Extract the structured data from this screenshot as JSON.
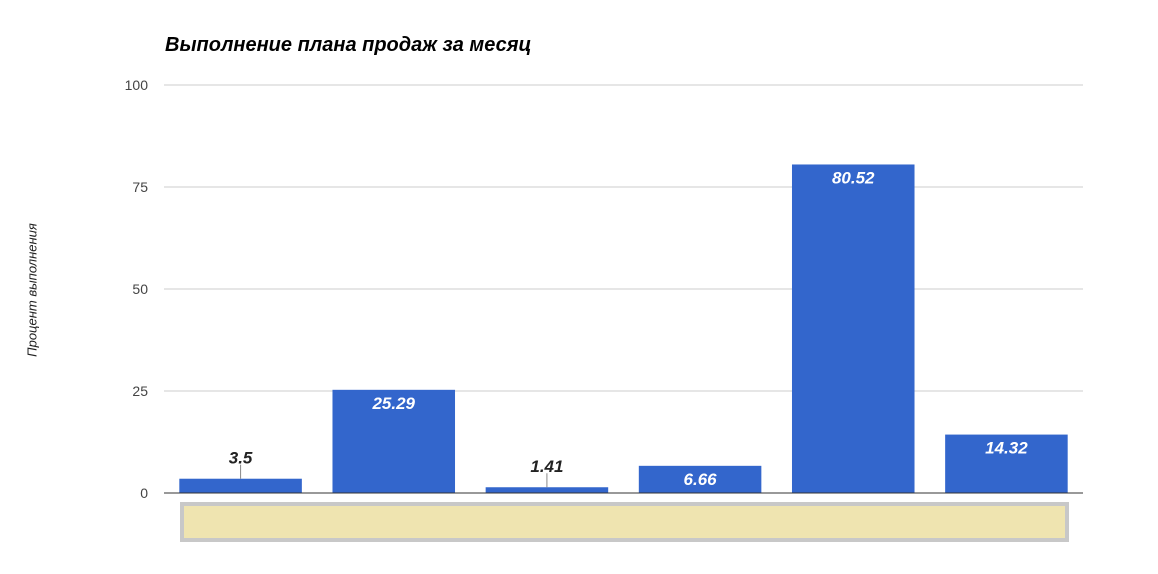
{
  "chart_data": {
    "type": "bar",
    "title": "Выполнение плана продаж за месяц",
    "ylabel": "Процент выполнения",
    "xlabel": "",
    "categories": [
      "",
      "",
      "",
      "",
      "",
      ""
    ],
    "values": [
      3.5,
      25.29,
      1.41,
      6.66,
      80.52,
      14.32
    ],
    "value_labels": [
      "3.5",
      "25.29",
      "1.41",
      "6.66",
      "80.52",
      "14.32"
    ],
    "ylim": [
      0,
      100
    ],
    "yticks": [
      0,
      25,
      50,
      75,
      100
    ],
    "ytick_labels": [
      "0",
      "25",
      "50",
      "75",
      "100"
    ],
    "grid": true,
    "legend": "none",
    "colors": {
      "bar": "#3366cc",
      "grid": "#cccccc",
      "baseline": "#333333",
      "tick_text": "#444444",
      "label_inside": "#ffffff",
      "label_outside": "#222222",
      "scroll_panel_fill": "#efe4b0",
      "scroll_panel_border": "#c8c8c8"
    }
  }
}
